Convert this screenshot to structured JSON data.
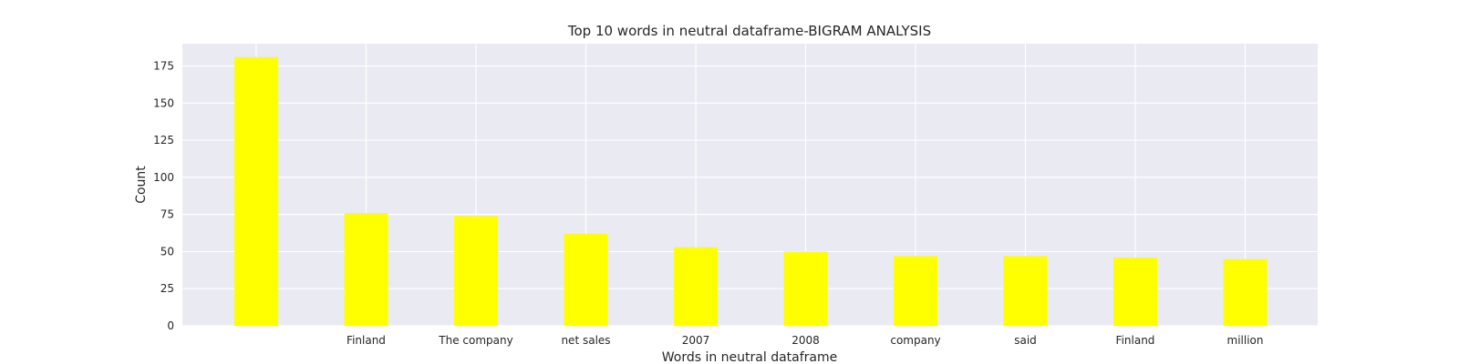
{
  "chart_data": {
    "type": "bar",
    "title": "Top 10 words in neutral dataframe-BIGRAM ANALYSIS",
    "xlabel": "Words in neutral dataframe",
    "ylabel": "Count",
    "categories": [
      "",
      "Finland",
      "The company",
      "net sales",
      "2007",
      "2008",
      "company",
      "said",
      "Finland",
      "million"
    ],
    "values": [
      181,
      76,
      74,
      62,
      53,
      50,
      47,
      47,
      46,
      45
    ],
    "ylim": [
      0,
      190
    ],
    "yticks": [
      0,
      25,
      50,
      75,
      100,
      125,
      150,
      175
    ],
    "grid": true,
    "legend": "none",
    "colors": {
      "bar": "#ffff00",
      "plot_background": "#eaeaf2",
      "grid": "#ffffff",
      "text": "#262626"
    }
  }
}
